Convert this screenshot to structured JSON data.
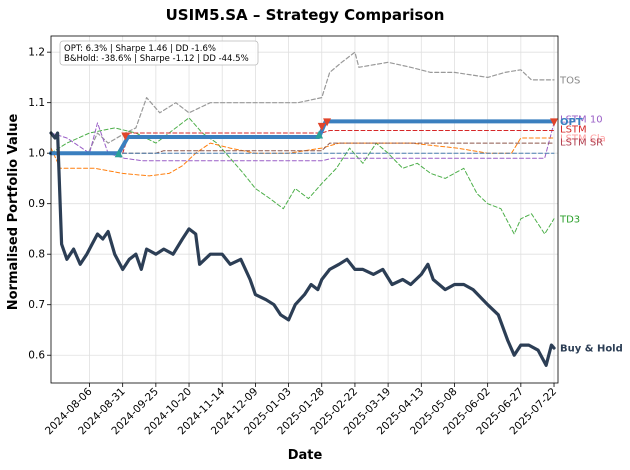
{
  "chart_data": {
    "type": "line",
    "title": "USIM5.SA – Strategy Comparison",
    "xlabel": "Date",
    "ylabel": "Normalised Portfolio Value",
    "x_start": "2024-07-08",
    "x_end": "2025-07-25",
    "ylim": [
      0.545,
      1.232
    ],
    "yticks": [
      0.6,
      0.7,
      0.8,
      0.9,
      1.0,
      1.1,
      1.2
    ],
    "xticks": [
      "2024-08-06",
      "2024-08-31",
      "2024-09-25",
      "2024-10-20",
      "2024-11-14",
      "2024-12-09",
      "2025-01-03",
      "2025-01-28",
      "2025-02-22",
      "2025-03-19",
      "2025-04-13",
      "2025-05-08",
      "2025-06-02",
      "2025-06-27",
      "2025-07-22"
    ],
    "grid": true,
    "stats_box": {
      "line1": "OPT: 6.3% | Sharpe 1.46 | DD -1.6%",
      "line2": "B&Hold: -38.6% | Sharpe -1.12 | DD -44.5%"
    },
    "series": [
      {
        "name": "TOS",
        "color": "#999999",
        "style": "dashed",
        "width": 1.2,
        "final": 1.145,
        "points": [
          [
            "2024-07-08",
            1.0
          ],
          [
            "2024-08-05",
            1.0
          ],
          [
            "2024-08-12",
            1.04
          ],
          [
            "2024-08-20",
            1.02
          ],
          [
            "2024-09-02",
            1.04
          ],
          [
            "2024-09-10",
            1.05
          ],
          [
            "2024-09-18",
            1.11
          ],
          [
            "2024-09-28",
            1.08
          ],
          [
            "2024-10-10",
            1.1
          ],
          [
            "2024-10-20",
            1.08
          ],
          [
            "2024-11-05",
            1.1
          ],
          [
            "2024-11-20",
            1.1
          ],
          [
            "2024-12-10",
            1.1
          ],
          [
            "2025-01-10",
            1.1
          ],
          [
            "2025-01-28",
            1.11
          ],
          [
            "2025-02-03",
            1.16
          ],
          [
            "2025-02-12",
            1.18
          ],
          [
            "2025-02-22",
            1.2
          ],
          [
            "2025-02-25",
            1.17
          ],
          [
            "2025-03-19",
            1.18
          ],
          [
            "2025-04-05",
            1.17
          ],
          [
            "2025-04-20",
            1.16
          ],
          [
            "2025-05-08",
            1.16
          ],
          [
            "2025-06-02",
            1.15
          ],
          [
            "2025-06-15",
            1.16
          ],
          [
            "2025-06-27",
            1.165
          ],
          [
            "2025-07-05",
            1.145
          ],
          [
            "2025-07-22",
            1.145
          ]
        ]
      },
      {
        "name": "TD3",
        "color": "#4daf4a",
        "style": "dashed",
        "width": 1.0,
        "final": 0.87,
        "points": [
          [
            "2024-07-08",
            1.0
          ],
          [
            "2024-07-20",
            1.02
          ],
          [
            "2024-08-06",
            1.04
          ],
          [
            "2024-08-25",
            1.05
          ],
          [
            "2024-09-10",
            1.04
          ],
          [
            "2024-09-25",
            1.02
          ],
          [
            "2024-10-10",
            1.05
          ],
          [
            "2024-10-20",
            1.07
          ],
          [
            "2024-10-30",
            1.04
          ],
          [
            "2024-11-10",
            1.02
          ],
          [
            "2024-11-20",
            0.99
          ],
          [
            "2024-11-30",
            0.96
          ],
          [
            "2024-12-09",
            0.93
          ],
          [
            "2024-12-20",
            0.91
          ],
          [
            "2024-12-30",
            0.89
          ],
          [
            "2025-01-08",
            0.93
          ],
          [
            "2025-01-18",
            0.91
          ],
          [
            "2025-01-28",
            0.94
          ],
          [
            "2025-02-08",
            0.97
          ],
          [
            "2025-02-18",
            1.01
          ],
          [
            "2025-02-28",
            0.98
          ],
          [
            "2025-03-10",
            1.02
          ],
          [
            "2025-03-19",
            1.0
          ],
          [
            "2025-03-30",
            0.97
          ],
          [
            "2025-04-10",
            0.98
          ],
          [
            "2025-04-20",
            0.96
          ],
          [
            "2025-05-01",
            0.95
          ],
          [
            "2025-05-15",
            0.97
          ],
          [
            "2025-05-25",
            0.92
          ],
          [
            "2025-06-02",
            0.9
          ],
          [
            "2025-06-12",
            0.89
          ],
          [
            "2025-06-22",
            0.84
          ],
          [
            "2025-06-27",
            0.87
          ],
          [
            "2025-07-05",
            0.88
          ],
          [
            "2025-07-15",
            0.84
          ],
          [
            "2025-07-22",
            0.87
          ]
        ]
      },
      {
        "name": "LSTM 10",
        "color": "#9a5fc7",
        "style": "dashed",
        "width": 1.0,
        "final": 1.06,
        "points": [
          [
            "2024-07-08",
            1.04
          ],
          [
            "2024-07-20",
            1.03
          ],
          [
            "2024-08-06",
            1.0
          ],
          [
            "2024-08-12",
            1.06
          ],
          [
            "2024-08-20",
            1.0
          ],
          [
            "2024-09-01",
            0.99
          ],
          [
            "2024-09-15",
            0.985
          ],
          [
            "2025-01-28",
            0.985
          ],
          [
            "2025-02-05",
            0.99
          ],
          [
            "2025-07-15",
            0.99
          ],
          [
            "2025-07-22",
            1.06
          ]
        ]
      },
      {
        "name": "LSTM",
        "color": "#d62728",
        "style": "dashed",
        "width": 1.0,
        "final": 1.045,
        "points": [
          [
            "2024-07-08",
            1.0
          ],
          [
            "2024-08-31",
            1.0
          ],
          [
            "2024-09-05",
            1.04
          ],
          [
            "2025-01-28",
            1.04
          ],
          [
            "2025-02-03",
            1.045
          ],
          [
            "2025-07-22",
            1.045
          ]
        ]
      },
      {
        "name": "LSTM Cla",
        "color": "#ff7f0e",
        "style": "dashed",
        "width": 1.0,
        "final": 1.03,
        "points": [
          [
            "2024-07-08",
            1.01
          ],
          [
            "2024-07-15",
            0.97
          ],
          [
            "2024-08-10",
            0.97
          ],
          [
            "2024-08-31",
            0.96
          ],
          [
            "2024-09-20",
            0.955
          ],
          [
            "2024-10-05",
            0.96
          ],
          [
            "2024-10-15",
            0.975
          ],
          [
            "2024-10-25",
            1.0
          ],
          [
            "2024-11-05",
            1.02
          ],
          [
            "2024-11-20",
            1.01
          ],
          [
            "2024-12-09",
            1.0
          ],
          [
            "2025-01-03",
            1.0
          ],
          [
            "2025-01-28",
            1.01
          ],
          [
            "2025-02-10",
            1.02
          ],
          [
            "2025-03-10",
            1.02
          ],
          [
            "2025-04-05",
            1.02
          ],
          [
            "2025-05-10",
            1.01
          ],
          [
            "2025-06-02",
            1.0
          ],
          [
            "2025-06-20",
            1.0
          ],
          [
            "2025-06-27",
            1.03
          ],
          [
            "2025-07-22",
            1.03
          ]
        ]
      },
      {
        "name": "LSTM SR",
        "color": "#8c564b",
        "style": "dashed",
        "width": 1.0,
        "final": 1.02,
        "points": [
          [
            "2024-07-08",
            1.0
          ],
          [
            "2024-09-25",
            1.0
          ],
          [
            "2024-10-01",
            1.005
          ],
          [
            "2025-01-28",
            1.005
          ],
          [
            "2025-02-03",
            1.02
          ],
          [
            "2025-07-22",
            1.02
          ]
        ]
      },
      {
        "name": "",
        "color": "#4a7fb0",
        "style": "dashed",
        "width": 1.0,
        "final": 1.0,
        "points": [
          [
            "2024-07-08",
            1.0
          ],
          [
            "2025-07-22",
            1.0
          ]
        ]
      },
      {
        "name": "OPT",
        "color": "#3a7fbf",
        "style": "solid",
        "width": 4.0,
        "final": 1.063,
        "points": [
          [
            "2024-07-08",
            1.0
          ],
          [
            "2024-08-28",
            1.0
          ],
          [
            "2024-09-04",
            1.032
          ],
          [
            "2025-01-26",
            1.032
          ],
          [
            "2025-01-31",
            1.063
          ],
          [
            "2025-07-22",
            1.063
          ]
        ]
      },
      {
        "name": "Buy & Hold",
        "color": "#2c3e55",
        "style": "solid",
        "width": 3.2,
        "final": 0.614,
        "points": [
          [
            "2024-07-08",
            1.04
          ],
          [
            "2024-07-11",
            1.03
          ],
          [
            "2024-07-13",
            1.04
          ],
          [
            "2024-07-16",
            0.82
          ],
          [
            "2024-07-20",
            0.79
          ],
          [
            "2024-07-25",
            0.81
          ],
          [
            "2024-07-30",
            0.78
          ],
          [
            "2024-08-04",
            0.8
          ],
          [
            "2024-08-08",
            0.82
          ],
          [
            "2024-08-12",
            0.84
          ],
          [
            "2024-08-16",
            0.83
          ],
          [
            "2024-08-20",
            0.845
          ],
          [
            "2024-08-25",
            0.8
          ],
          [
            "2024-08-31",
            0.77
          ],
          [
            "2024-09-05",
            0.79
          ],
          [
            "2024-09-10",
            0.8
          ],
          [
            "2024-09-14",
            0.77
          ],
          [
            "2024-09-18",
            0.81
          ],
          [
            "2024-09-25",
            0.8
          ],
          [
            "2024-10-01",
            0.81
          ],
          [
            "2024-10-08",
            0.8
          ],
          [
            "2024-10-15",
            0.83
          ],
          [
            "2024-10-20",
            0.85
          ],
          [
            "2024-10-25",
            0.84
          ],
          [
            "2024-10-28",
            0.78
          ],
          [
            "2024-11-05",
            0.8
          ],
          [
            "2024-11-14",
            0.8
          ],
          [
            "2024-11-20",
            0.78
          ],
          [
            "2024-11-28",
            0.79
          ],
          [
            "2024-12-05",
            0.75
          ],
          [
            "2024-12-09",
            0.72
          ],
          [
            "2024-12-17",
            0.71
          ],
          [
            "2024-12-23",
            0.7
          ],
          [
            "2024-12-28",
            0.68
          ],
          [
            "2025-01-03",
            0.67
          ],
          [
            "2025-01-08",
            0.7
          ],
          [
            "2025-01-15",
            0.72
          ],
          [
            "2025-01-20",
            0.74
          ],
          [
            "2025-01-25",
            0.73
          ],
          [
            "2025-01-28",
            0.75
          ],
          [
            "2025-02-03",
            0.77
          ],
          [
            "2025-02-10",
            0.78
          ],
          [
            "2025-02-16",
            0.79
          ],
          [
            "2025-02-22",
            0.77
          ],
          [
            "2025-02-28",
            0.77
          ],
          [
            "2025-03-08",
            0.76
          ],
          [
            "2025-03-15",
            0.77
          ],
          [
            "2025-03-22",
            0.74
          ],
          [
            "2025-03-30",
            0.75
          ],
          [
            "2025-04-05",
            0.74
          ],
          [
            "2025-04-13",
            0.76
          ],
          [
            "2025-04-18",
            0.78
          ],
          [
            "2025-04-22",
            0.75
          ],
          [
            "2025-05-01",
            0.73
          ],
          [
            "2025-05-08",
            0.74
          ],
          [
            "2025-05-15",
            0.74
          ],
          [
            "2025-05-22",
            0.73
          ],
          [
            "2025-06-02",
            0.7
          ],
          [
            "2025-06-10",
            0.68
          ],
          [
            "2025-06-17",
            0.63
          ],
          [
            "2025-06-22",
            0.6
          ],
          [
            "2025-06-27",
            0.62
          ],
          [
            "2025-07-03",
            0.62
          ],
          [
            "2025-07-10",
            0.61
          ],
          [
            "2025-07-16",
            0.58
          ],
          [
            "2025-07-20",
            0.62
          ],
          [
            "2025-07-22",
            0.614
          ]
        ]
      }
    ],
    "markers": [
      {
        "date": "2024-08-28",
        "y": 0.998,
        "kind": "buy"
      },
      {
        "date": "2024-09-02",
        "y": 1.035,
        "kind": "sell"
      },
      {
        "date": "2025-01-26",
        "y": 1.035,
        "kind": "buy"
      },
      {
        "date": "2025-01-28",
        "y": 1.054,
        "kind": "sell"
      },
      {
        "date": "2025-02-01",
        "y": 1.063,
        "kind": "sell"
      },
      {
        "date": "2025-07-22",
        "y": 1.063,
        "kind": "sell"
      }
    ],
    "end_labels": [
      {
        "text": "TOS",
        "y": 1.145,
        "color": "#888888",
        "bold": false
      },
      {
        "text": "LSTM 10",
        "y": 1.068,
        "color": "#9a5fc7",
        "bold": false
      },
      {
        "text": "OPT",
        "y": 1.063,
        "color": "#3a7fbf",
        "bold": true
      },
      {
        "text": "LSTM",
        "y": 1.048,
        "color": "#d62728",
        "bold": false
      },
      {
        "text": "LSTM Cla",
        "y": 1.03,
        "color": "#ff9fa0",
        "bold": false
      },
      {
        "text": "LSTM SR",
        "y": 1.022,
        "color": "#b04050",
        "bold": false
      },
      {
        "text": "TD3",
        "y": 0.87,
        "color": "#2ca02c",
        "bold": false
      },
      {
        "text": "Buy & Hold",
        "y": 0.614,
        "color": "#2c3e55",
        "bold": true
      }
    ]
  }
}
